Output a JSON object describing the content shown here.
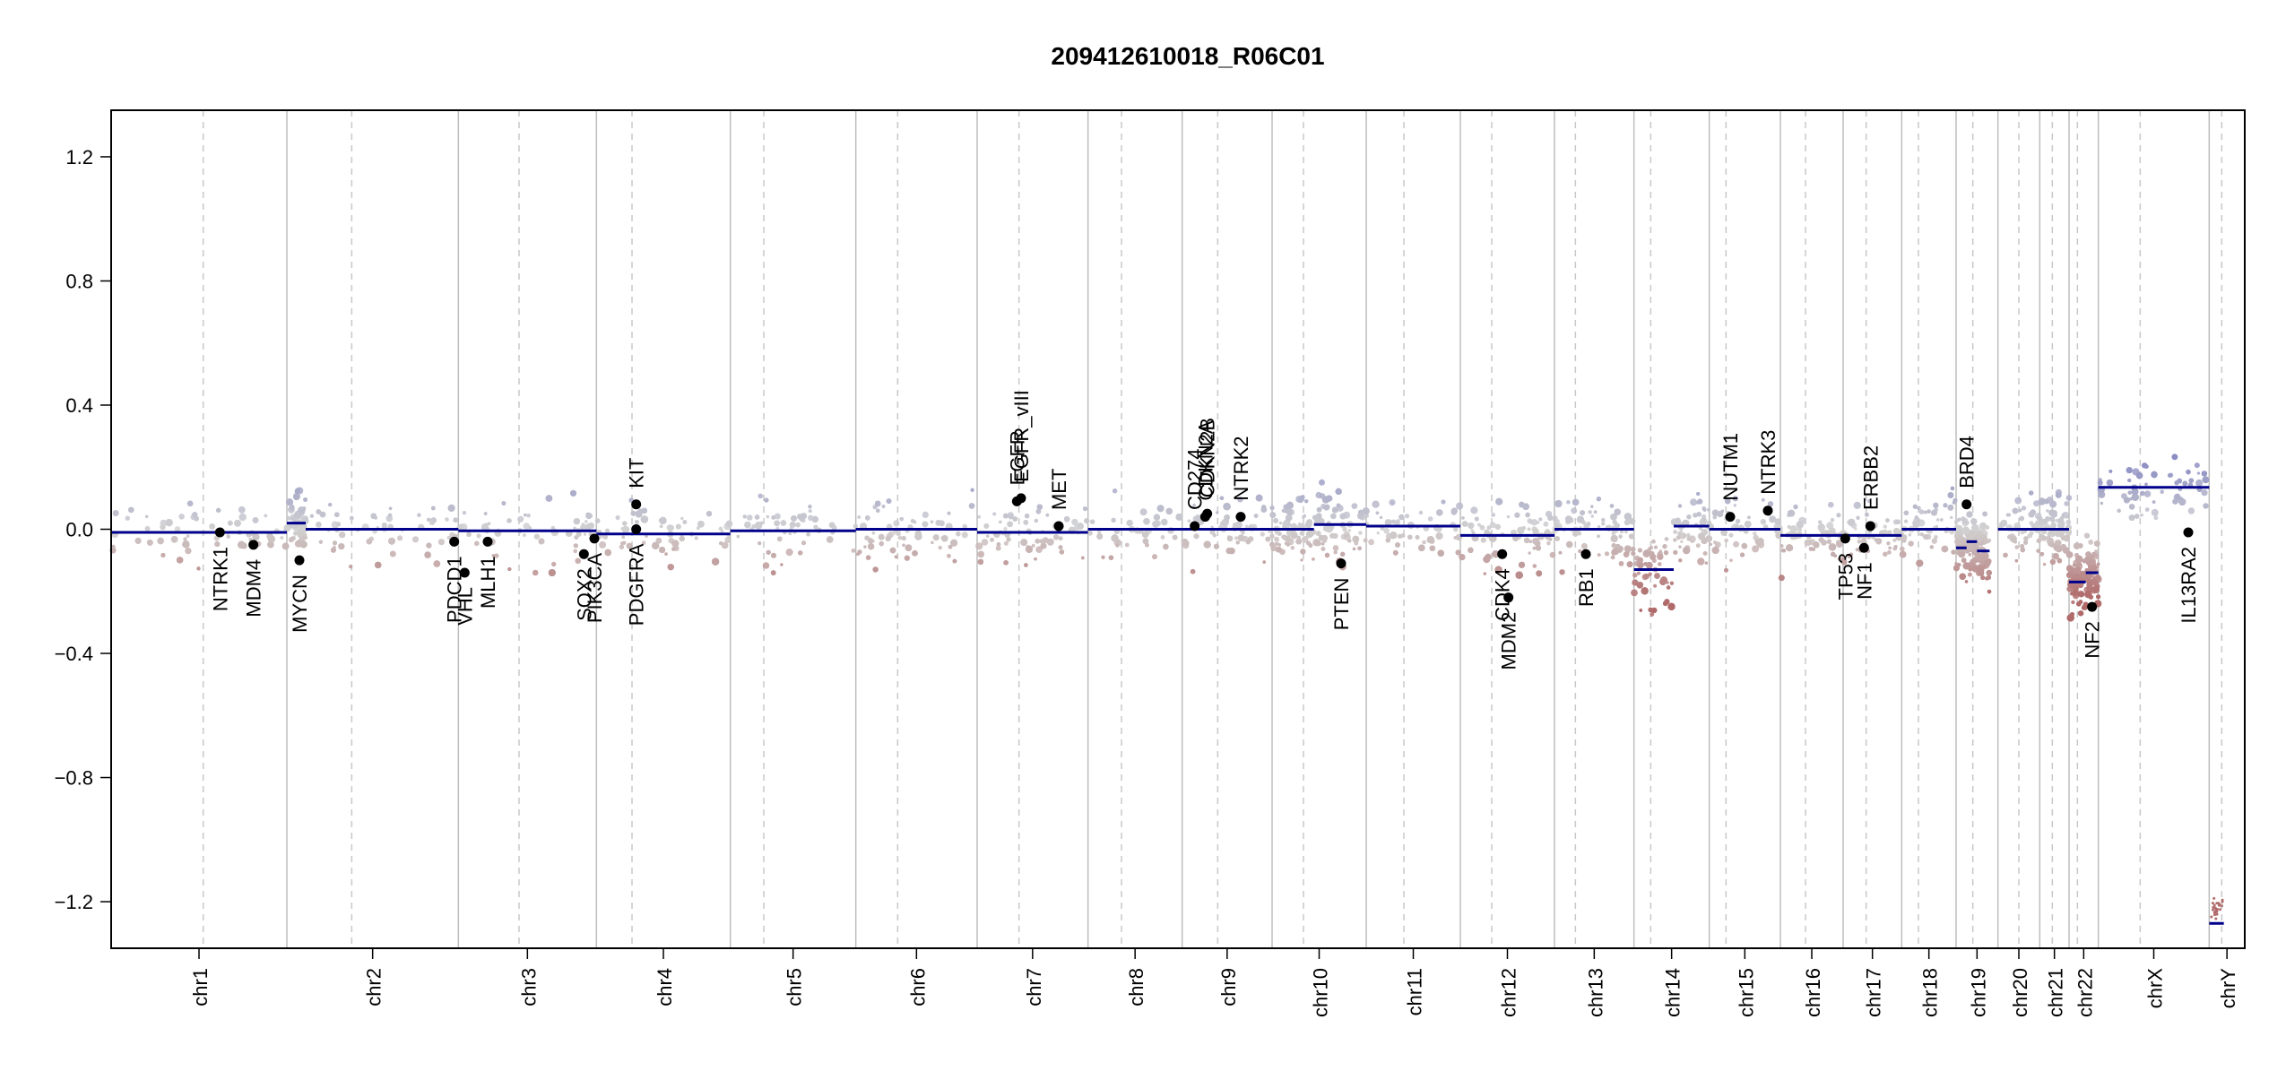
{
  "chart_data": {
    "type": "scatter",
    "title": "209412610018_R06C01",
    "xlabel": "",
    "ylabel": "",
    "ylim": [
      -1.35,
      1.35
    ],
    "y_ticks": [
      -1.2,
      -0.8,
      -0.4,
      0.0,
      0.4,
      0.8,
      1.2
    ],
    "y_tick_labels": [
      "−1.2",
      "−0.8",
      "−0.4",
      "0.0",
      "0.4",
      "0.8",
      "1.2"
    ],
    "grid": false,
    "colors": {
      "gain": "#8a8cc2",
      "loss": "#b06a6a",
      "neutral": "#c8c8c8",
      "segment": "#00008b",
      "gene_dot": "#000000"
    },
    "chromosomes": [
      {
        "label": "chr1",
        "start": 0.0,
        "end": 8.4
      },
      {
        "label": "chr2",
        "start": 8.4,
        "end": 16.6
      },
      {
        "label": "chr3",
        "start": 16.6,
        "end": 23.2
      },
      {
        "label": "chr4",
        "start": 23.2,
        "end": 29.6
      },
      {
        "label": "chr5",
        "start": 29.6,
        "end": 35.6
      },
      {
        "label": "chr6",
        "start": 35.6,
        "end": 41.4
      },
      {
        "label": "chr7",
        "start": 41.4,
        "end": 46.7
      },
      {
        "label": "chr8",
        "start": 46.7,
        "end": 51.2
      },
      {
        "label": "chr9",
        "start": 51.2,
        "end": 55.5
      },
      {
        "label": "chr10",
        "start": 55.5,
        "end": 60.0
      },
      {
        "label": "chr11",
        "start": 60.0,
        "end": 64.5
      },
      {
        "label": "chr12",
        "start": 64.5,
        "end": 69.0
      },
      {
        "label": "chr13",
        "start": 69.0,
        "end": 72.8
      },
      {
        "label": "chr14",
        "start": 72.8,
        "end": 76.4
      },
      {
        "label": "chr15",
        "start": 76.4,
        "end": 79.8
      },
      {
        "label": "chr16",
        "start": 79.8,
        "end": 82.8
      },
      {
        "label": "chr17",
        "start": 82.8,
        "end": 85.6
      },
      {
        "label": "chr18",
        "start": 85.6,
        "end": 88.2
      },
      {
        "label": "chr19",
        "start": 88.2,
        "end": 90.2
      },
      {
        "label": "chr20",
        "start": 90.2,
        "end": 92.2
      },
      {
        "label": "chr21",
        "start": 92.2,
        "end": 93.6
      },
      {
        "label": "chr22",
        "start": 93.6,
        "end": 95.0
      },
      {
        "label": "chrX",
        "start": 95.0,
        "end": 100.3
      },
      {
        "label": "chrY",
        "start": 100.3,
        "end": 102.0
      }
    ],
    "centromeres": [
      4.4,
      11.5,
      19.5,
      24.9,
      31.2,
      37.6,
      43.4,
      48.3,
      52.9,
      57.0,
      61.8,
      66.0,
      70.0,
      73.6,
      77.2,
      81.0,
      83.9,
      86.4,
      89.0,
      91.2,
      92.8,
      94.0,
      97.0,
      100.9
    ],
    "segments": [
      {
        "x0": 0.0,
        "x1": 8.4,
        "y": -0.01
      },
      {
        "x0": 8.4,
        "x1": 9.3,
        "y": 0.02
      },
      {
        "x0": 9.3,
        "x1": 16.6,
        "y": 0.0
      },
      {
        "x0": 16.6,
        "x1": 23.2,
        "y": -0.005
      },
      {
        "x0": 23.2,
        "x1": 29.6,
        "y": -0.015
      },
      {
        "x0": 29.6,
        "x1": 35.6,
        "y": -0.005
      },
      {
        "x0": 35.6,
        "x1": 41.4,
        "y": 0.0
      },
      {
        "x0": 41.4,
        "x1": 46.7,
        "y": -0.01
      },
      {
        "x0": 46.7,
        "x1": 51.2,
        "y": 0.0
      },
      {
        "x0": 51.2,
        "x1": 55.5,
        "y": 0.0
      },
      {
        "x0": 55.5,
        "x1": 57.5,
        "y": 0.0
      },
      {
        "x0": 57.5,
        "x1": 60.0,
        "y": 0.015
      },
      {
        "x0": 60.0,
        "x1": 64.5,
        "y": 0.01
      },
      {
        "x0": 64.5,
        "x1": 69.0,
        "y": -0.02
      },
      {
        "x0": 69.0,
        "x1": 72.8,
        "y": 0.0
      },
      {
        "x0": 72.8,
        "x1": 74.7,
        "y": -0.13
      },
      {
        "x0": 74.7,
        "x1": 76.4,
        "y": 0.01
      },
      {
        "x0": 76.4,
        "x1": 79.8,
        "y": 0.0
      },
      {
        "x0": 79.8,
        "x1": 82.8,
        "y": -0.02
      },
      {
        "x0": 82.8,
        "x1": 85.6,
        "y": -0.02
      },
      {
        "x0": 85.6,
        "x1": 88.2,
        "y": 0.0
      },
      {
        "x0": 88.2,
        "x1": 88.7,
        "y": -0.06
      },
      {
        "x0": 88.7,
        "x1": 89.2,
        "y": -0.04
      },
      {
        "x0": 89.2,
        "x1": 89.8,
        "y": -0.07
      },
      {
        "x0": 90.2,
        "x1": 92.2,
        "y": 0.0
      },
      {
        "x0": 92.2,
        "x1": 93.6,
        "y": 0.0
      },
      {
        "x0": 93.6,
        "x1": 94.4,
        "y": -0.17
      },
      {
        "x0": 94.4,
        "x1": 95.0,
        "y": -0.14
      },
      {
        "x0": 95.0,
        "x1": 100.3,
        "y": 0.135
      },
      {
        "x0": 100.3,
        "x1": 101.0,
        "y": -1.27
      }
    ],
    "genes": [
      {
        "name": "NTRK1",
        "x": 5.2,
        "y": -0.01,
        "side": "below"
      },
      {
        "name": "MDM4",
        "x": 6.8,
        "y": -0.05,
        "side": "below"
      },
      {
        "name": "MYCN",
        "x": 9.0,
        "y": -0.1,
        "side": "below"
      },
      {
        "name": "PDCD1",
        "x": 16.4,
        "y": -0.04,
        "side": "below"
      },
      {
        "name": "VHL",
        "x": 16.9,
        "y": -0.14,
        "side": "below"
      },
      {
        "name": "MLH1",
        "x": 18.0,
        "y": -0.04,
        "side": "below"
      },
      {
        "name": "SOX2",
        "x": 22.6,
        "y": -0.08,
        "side": "below"
      },
      {
        "name": "PIK3CA",
        "x": 23.1,
        "y": -0.03,
        "side": "below"
      },
      {
        "name": "PDGFRA",
        "x": 25.1,
        "y": 0.0,
        "side": "below"
      },
      {
        "name": "KIT",
        "x": 25.1,
        "y": 0.08,
        "side": "above"
      },
      {
        "name": "EGFR_vIII",
        "x": 43.5,
        "y": 0.1,
        "side": "above"
      },
      {
        "name": "EGFR",
        "x": 43.3,
        "y": 0.09,
        "side": "above"
      },
      {
        "name": "MET",
        "x": 45.3,
        "y": 0.01,
        "side": "above"
      },
      {
        "name": "CD274",
        "x": 51.8,
        "y": 0.01,
        "side": "above"
      },
      {
        "name": "CDKN2A",
        "x": 52.3,
        "y": 0.04,
        "side": "above"
      },
      {
        "name": "CDKN2B",
        "x": 52.4,
        "y": 0.05,
        "side": "above"
      },
      {
        "name": "NTRK2",
        "x": 54.0,
        "y": 0.04,
        "side": "above"
      },
      {
        "name": "PTEN",
        "x": 58.8,
        "y": -0.11,
        "side": "below"
      },
      {
        "name": "CDK4",
        "x": 66.5,
        "y": -0.08,
        "side": "below"
      },
      {
        "name": "MDM2",
        "x": 66.8,
        "y": -0.22,
        "side": "below"
      },
      {
        "name": "RB1",
        "x": 70.5,
        "y": -0.08,
        "side": "below"
      },
      {
        "name": "NUTM1",
        "x": 77.4,
        "y": 0.04,
        "side": "above"
      },
      {
        "name": "NTRK3",
        "x": 79.2,
        "y": 0.06,
        "side": "above"
      },
      {
        "name": "TP53",
        "x": 82.9,
        "y": -0.03,
        "side": "below"
      },
      {
        "name": "NF1",
        "x": 83.8,
        "y": -0.06,
        "side": "below"
      },
      {
        "name": "ERBB2",
        "x": 84.1,
        "y": 0.01,
        "side": "above"
      },
      {
        "name": "BRD4",
        "x": 88.7,
        "y": 0.08,
        "side": "above"
      },
      {
        "name": "NF2",
        "x": 94.7,
        "y": -0.25,
        "side": "below"
      },
      {
        "name": "IL13RA2",
        "x": 99.3,
        "y": -0.01,
        "side": "below"
      }
    ]
  }
}
